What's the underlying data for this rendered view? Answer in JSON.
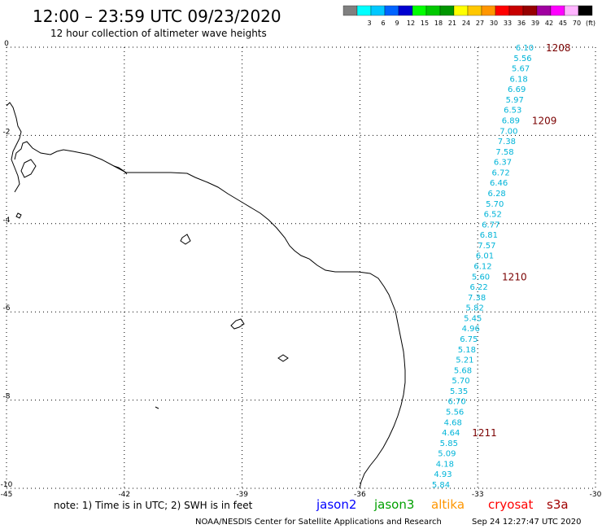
{
  "header": {
    "title": "12:00 – 23:59 UTC 09/23/2020",
    "subtitle": "12 hour collection of altimeter wave heights"
  },
  "legend": {
    "swatches": [
      {
        "label": "",
        "color": "#808080"
      },
      {
        "label": "3",
        "color": "#00ffff"
      },
      {
        "label": "6",
        "color": "#00c8ff"
      },
      {
        "label": "9",
        "color": "#0064ff"
      },
      {
        "label": "12",
        "color": "#0000d0"
      },
      {
        "label": "15",
        "color": "#00ff00"
      },
      {
        "label": "18",
        "color": "#00c800"
      },
      {
        "label": "21",
        "color": "#009600"
      },
      {
        "label": "24",
        "color": "#ffff00"
      },
      {
        "label": "27",
        "color": "#ffc800"
      },
      {
        "label": "30",
        "color": "#ff9600"
      },
      {
        "label": "33",
        "color": "#ff0000"
      },
      {
        "label": "36",
        "color": "#c80000"
      },
      {
        "label": "39",
        "color": "#960000"
      },
      {
        "label": "42",
        "color": "#a000a0"
      },
      {
        "label": "45",
        "color": "#ff00ff"
      },
      {
        "label": "70",
        "color": "#ffb4ff"
      },
      {
        "label": "(ft)",
        "color": "#000000"
      }
    ]
  },
  "axes": {
    "x_ticks": [
      "-45",
      "-42",
      "-39",
      "-36",
      "-33",
      "-30"
    ],
    "y_ticks": [
      "0",
      "-2",
      "-4",
      "-6",
      "-8",
      "-10"
    ],
    "xlim": [
      -45,
      -30
    ],
    "ylim": [
      -10,
      0
    ]
  },
  "track": {
    "color": "#00b4d8",
    "values": [
      "6.10",
      "5.56",
      "5.67",
      "6.18",
      "6.69",
      "5.97",
      "6.53",
      "6.89",
      "7.00",
      "7.38",
      "7.58",
      "6.37",
      "6.72",
      "6.46",
      "6.28",
      "5.70",
      "6.52",
      "6.77",
      "6.81",
      "7.57",
      "6.01",
      "6.12",
      "5.60",
      "6.22",
      "7.38",
      "5.82",
      "5.45",
      "4.96",
      "6.75",
      "5.18",
      "5.21",
      "5.68",
      "5.70",
      "5.35",
      "6.70",
      "5.56",
      "4.68",
      "4.64",
      "5.85",
      "5.09",
      "4.18",
      "4.93",
      "5.84"
    ],
    "time_labels": [
      {
        "label": "1208",
        "index": 0
      },
      {
        "label": "1209",
        "index": 7
      },
      {
        "label": "1210",
        "index": 22
      },
      {
        "label": "1211",
        "index": 37
      }
    ]
  },
  "footer": {
    "note": "note: 1) Time is in UTC; 2) SWH is in feet",
    "satellites": [
      {
        "label": "jason2",
        "color": "#0000ff"
      },
      {
        "label": "jason3",
        "color": "#00a000"
      },
      {
        "label": "altika",
        "color": "#ff9600"
      },
      {
        "label": "cryosat",
        "color": "#ff0000"
      },
      {
        "label": "s3a",
        "color": "#a00000"
      }
    ],
    "credit": "NOAA/NESDIS Center for Satellite Applications and Research",
    "timestamp": "Sep 24 12:27:47 UTC 2020"
  }
}
